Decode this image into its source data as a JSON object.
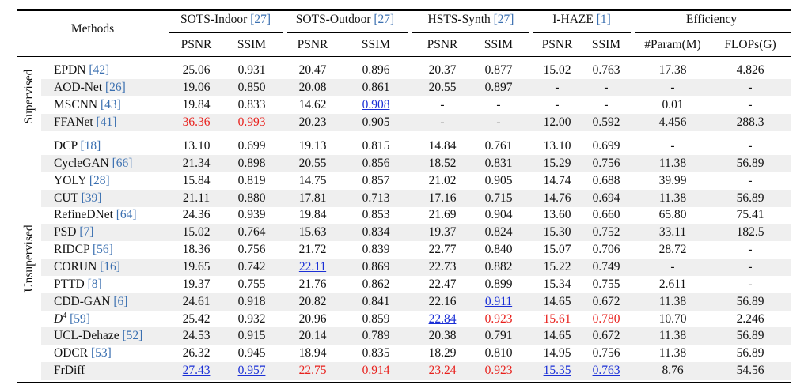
{
  "header": {
    "methods_label": "Methods",
    "groups": [
      {
        "name": "SOTS-Indoor",
        "ref": "[27]"
      },
      {
        "name": "SOTS-Outdoor",
        "ref": "[27]"
      },
      {
        "name": "HSTS-Synth",
        "ref": "[27]"
      },
      {
        "name": "I-HAZE",
        "ref": "[1]"
      },
      {
        "name": "Efficiency",
        "ref": ""
      }
    ],
    "metrics": [
      "PSNR",
      "SSIM",
      "PSNR",
      "SSIM",
      "PSNR",
      "SSIM",
      "PSNR",
      "SSIM",
      "#Param(M)",
      "FLOPs(G)"
    ]
  },
  "sections": [
    {
      "label": "Supervised",
      "rows": [
        {
          "name": "EPDN",
          "ref": "[42]",
          "values": [
            "25.06",
            "0.931",
            "20.47",
            "0.896",
            "20.37",
            "0.877",
            "15.02",
            "0.763",
            "17.38",
            "4.826"
          ],
          "styles": [
            "",
            "",
            "",
            "",
            "",
            "",
            "",
            "",
            "",
            ""
          ]
        },
        {
          "name": "AOD-Net",
          "ref": "[26]",
          "values": [
            "19.06",
            "0.850",
            "20.08",
            "0.861",
            "20.55",
            "0.897",
            "-",
            "-",
            "-",
            "-"
          ],
          "styles": [
            "",
            "",
            "",
            "",
            "",
            "",
            "",
            "",
            "",
            ""
          ]
        },
        {
          "name": "MSCNN",
          "ref": "[43]",
          "values": [
            "19.84",
            "0.833",
            "14.62",
            "0.908",
            "-",
            "-",
            "-",
            "-",
            "0.01",
            "-"
          ],
          "styles": [
            "",
            "",
            "",
            "blue",
            "",
            "",
            "",
            "",
            "",
            ""
          ]
        },
        {
          "name": "FFANet",
          "ref": "[41]",
          "values": [
            "36.36",
            "0.993",
            "20.23",
            "0.905",
            "-",
            "-",
            "12.00",
            "0.592",
            "4.456",
            "288.3"
          ],
          "styles": [
            "red",
            "red",
            "",
            "",
            "",
            "",
            "",
            "",
            "",
            ""
          ]
        }
      ]
    },
    {
      "label": "Unsupervised",
      "rows": [
        {
          "name": "DCP",
          "ref": "[18]",
          "values": [
            "13.10",
            "0.699",
            "19.13",
            "0.815",
            "14.84",
            "0.761",
            "13.10",
            "0.699",
            "-",
            "-"
          ],
          "styles": [
            "",
            "",
            "",
            "",
            "",
            "",
            "",
            "",
            "",
            ""
          ]
        },
        {
          "name": "CycleGAN",
          "ref": "[66]",
          "values": [
            "21.34",
            "0.898",
            "20.55",
            "0.856",
            "18.52",
            "0.831",
            "15.29",
            "0.756",
            "11.38",
            "56.89"
          ],
          "styles": [
            "",
            "",
            "",
            "",
            "",
            "",
            "",
            "",
            "",
            ""
          ]
        },
        {
          "name": "YOLY",
          "ref": "[28]",
          "values": [
            "15.84",
            "0.819",
            "14.75",
            "0.857",
            "21.02",
            "0.905",
            "14.74",
            "0.688",
            "39.99",
            "-"
          ],
          "styles": [
            "",
            "",
            "",
            "",
            "",
            "",
            "",
            "",
            "",
            ""
          ]
        },
        {
          "name": "CUT",
          "ref": "[39]",
          "values": [
            "21.11",
            "0.880",
            "17.81",
            "0.713",
            "17.16",
            "0.715",
            "14.76",
            "0.694",
            "11.38",
            "56.89"
          ],
          "styles": [
            "",
            "",
            "",
            "",
            "",
            "",
            "",
            "",
            "",
            ""
          ]
        },
        {
          "name": "RefineDNet",
          "ref": "[64]",
          "values": [
            "24.36",
            "0.939",
            "19.84",
            "0.853",
            "21.69",
            "0.904",
            "13.60",
            "0.660",
            "65.80",
            "75.41"
          ],
          "styles": [
            "",
            "",
            "",
            "",
            "",
            "",
            "",
            "",
            "",
            ""
          ]
        },
        {
          "name": "PSD",
          "ref": "[7]",
          "values": [
            "15.02",
            "0.764",
            "15.63",
            "0.834",
            "19.37",
            "0.824",
            "15.30",
            "0.752",
            "33.11",
            "182.5"
          ],
          "styles": [
            "",
            "",
            "",
            "",
            "",
            "",
            "",
            "",
            "",
            ""
          ]
        },
        {
          "name": "RIDCP",
          "ref": "[56]",
          "values": [
            "18.36",
            "0.756",
            "21.72",
            "0.839",
            "22.77",
            "0.840",
            "15.07",
            "0.706",
            "28.72",
            "-"
          ],
          "styles": [
            "",
            "",
            "",
            "",
            "",
            "",
            "",
            "",
            "",
            ""
          ]
        },
        {
          "name": "CORUN",
          "ref": "[16]",
          "values": [
            "19.65",
            "0.742",
            "22.11",
            "0.869",
            "22.73",
            "0.882",
            "15.22",
            "0.749",
            "-",
            "-"
          ],
          "styles": [
            "",
            "",
            "blue",
            "",
            "",
            "",
            "",
            "",
            "",
            ""
          ]
        },
        {
          "name": "PTTD",
          "ref": "[8]",
          "values": [
            "19.37",
            "0.755",
            "21.76",
            "0.862",
            "22.47",
            "0.899",
            "15.34",
            "0.755",
            "2.611",
            "-"
          ],
          "styles": [
            "",
            "",
            "",
            "",
            "",
            "",
            "",
            "",
            "",
            ""
          ]
        },
        {
          "name": "CDD-GAN",
          "ref": "[6]",
          "values": [
            "24.61",
            "0.918",
            "20.82",
            "0.841",
            "22.16",
            "0.911",
            "14.65",
            "0.672",
            "11.38",
            "56.89"
          ],
          "styles": [
            "",
            "",
            "",
            "",
            "",
            "blue",
            "",
            "",
            "",
            ""
          ]
        },
        {
          "name": "D",
          "sup": "4",
          "ref": "[59]",
          "values": [
            "25.42",
            "0.932",
            "20.96",
            "0.859",
            "22.84",
            "0.923",
            "15.61",
            "0.780",
            "10.70",
            "2.246"
          ],
          "styles": [
            "",
            "",
            "",
            "",
            "blue",
            "red",
            "red",
            "red",
            "",
            ""
          ]
        },
        {
          "name": "UCL-Dehaze",
          "ref": "[52]",
          "values": [
            "24.53",
            "0.915",
            "20.14",
            "0.789",
            "20.38",
            "0.791",
            "14.65",
            "0.672",
            "11.38",
            "56.89"
          ],
          "styles": [
            "",
            "",
            "",
            "",
            "",
            "",
            "",
            "",
            "",
            ""
          ]
        },
        {
          "name": "ODCR",
          "ref": "[53]",
          "values": [
            "26.32",
            "0.945",
            "18.94",
            "0.835",
            "18.29",
            "0.810",
            "14.95",
            "0.756",
            "11.38",
            "56.89"
          ],
          "styles": [
            "",
            "",
            "",
            "",
            "",
            "",
            "",
            "",
            "",
            ""
          ]
        },
        {
          "name": "FrDiff",
          "ref": "",
          "values": [
            "27.43",
            "0.957",
            "22.75",
            "0.914",
            "23.24",
            "0.923",
            "15.35",
            "0.763",
            "8.76",
            "54.56"
          ],
          "styles": [
            "blue",
            "blue",
            "red",
            "red",
            "red",
            "red",
            "blue",
            "blue",
            "",
            ""
          ]
        }
      ]
    }
  ],
  "colors": {
    "best": "#e8201c",
    "second": "#1a2fd6",
    "ref": "#3a6fb0",
    "shade": "#efefef"
  }
}
